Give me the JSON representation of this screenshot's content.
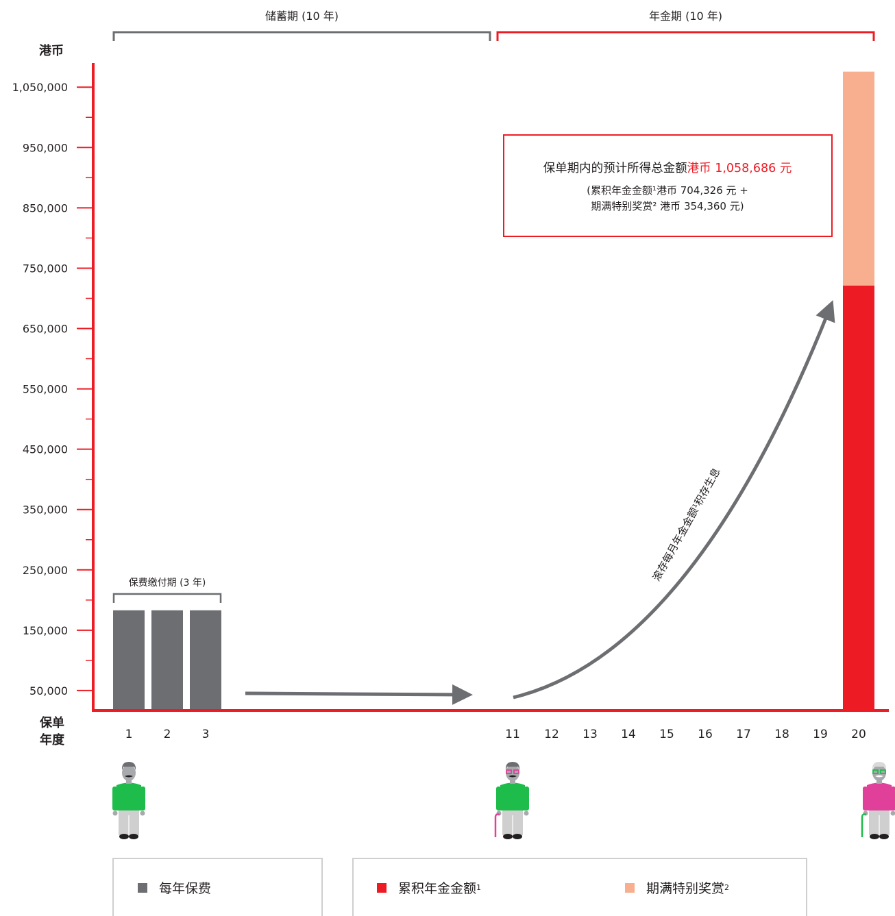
{
  "y_axis_unit": "港币",
  "x_axis_label_line1": "保单",
  "x_axis_label_line2": "年度",
  "periods": [
    {
      "label": "储蓄期 (10 年)",
      "start_year": 1,
      "end_year": 10,
      "color": "#6d6e71"
    },
    {
      "label": "年金期 (10 年)",
      "start_year": 11,
      "end_year": 20,
      "color": "#ed1c24"
    }
  ],
  "premium_period_label": "保费缴付期 (3 年)",
  "curve_label": "滚存每月年金金额¹积存生息",
  "callout": {
    "line1_prefix": "保单期内的预计所得总金额",
    "line1_amount": "港币 1,058,686 元",
    "line2": "(累积年金金额¹港币 704,326 元 +",
    "line3": "期满特别奖赏² 港币 354,360 元)"
  },
  "colors": {
    "premium": "#6d6e71",
    "annuity": "#ed1c24",
    "bonus": "#f7af8f",
    "axis": "#ed1c24"
  },
  "legend": {
    "left": [
      {
        "key": "premium",
        "label": "每年保费"
      }
    ],
    "right": [
      {
        "key": "annuity",
        "label": "累积年金金额",
        "sup": "1"
      },
      {
        "key": "bonus",
        "label": "期满特别奖赏",
        "sup": "2"
      }
    ]
  },
  "chart_data": {
    "type": "bar",
    "xlabel": "保单年度",
    "ylabel": "港币",
    "ylim": [
      17000,
      1090000
    ],
    "y_ticks": [
      50000,
      150000,
      250000,
      350000,
      450000,
      550000,
      650000,
      750000,
      850000,
      950000,
      1050000
    ],
    "y_tick_labels": [
      "50,000",
      "150,000",
      "250,000",
      "350,000",
      "450,000",
      "550,000",
      "650,000",
      "750,000",
      "850,000",
      "950,000",
      "1,050,000"
    ],
    "categories": [
      "1",
      "2",
      "3",
      "11",
      "12",
      "13",
      "14",
      "15",
      "16",
      "17",
      "18",
      "19",
      "20"
    ],
    "series": [
      {
        "name": "每年保费",
        "key": "premium",
        "values": [
          {
            "x": "1",
            "y": 183000
          },
          {
            "x": "2",
            "y": 183000
          },
          {
            "x": "3",
            "y": 183000
          }
        ]
      },
      {
        "name": "累积年金金额",
        "key": "annuity",
        "values": [
          {
            "x": "20",
            "y": 704326
          }
        ]
      },
      {
        "name": "期满特别奖赏",
        "key": "bonus",
        "stacked_on": "annuity",
        "values": [
          {
            "x": "20",
            "y": 354360
          }
        ]
      }
    ],
    "grid": false
  }
}
